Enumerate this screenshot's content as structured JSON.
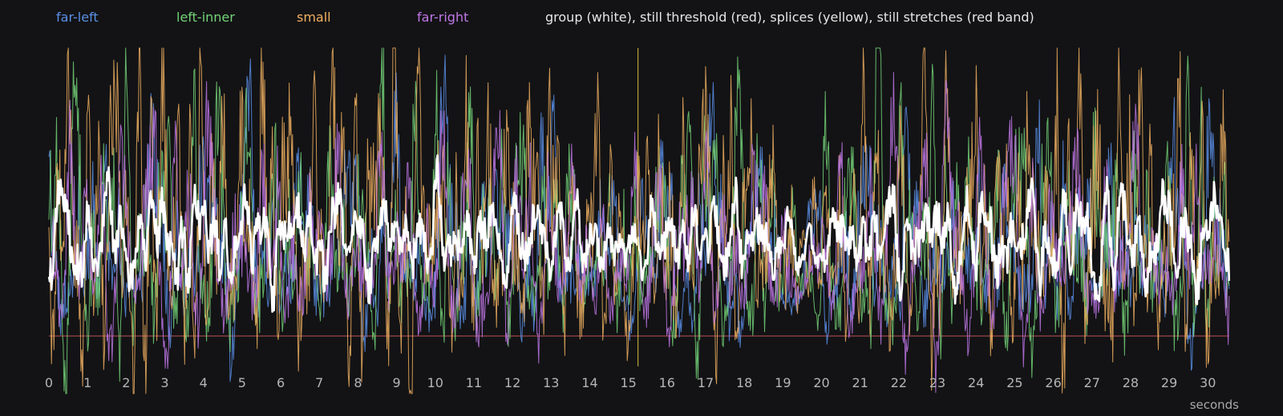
{
  "chart_data": {
    "type": "line",
    "caption": "group (white), still threshold (red), splices (yellow), still stretches (red band)",
    "xlabel": "seconds",
    "xlim": [
      0,
      30.7
    ],
    "ylim": [
      0,
      1
    ],
    "x_ticks": [
      0,
      1,
      2,
      3,
      4,
      5,
      6,
      7,
      8,
      9,
      10,
      11,
      12,
      13,
      14,
      15,
      16,
      17,
      18,
      19,
      20,
      21,
      22,
      23,
      24,
      25,
      26,
      27,
      28,
      29,
      30
    ],
    "threshold": {
      "value": 0.1,
      "color": "#e06060"
    },
    "splices": [
      {
        "x": 15.25,
        "color": "#d8c040"
      }
    ],
    "series": [
      {
        "name": "far-left",
        "color": "#5b8fe8",
        "amp": 0.33,
        "seed": 11
      },
      {
        "name": "left-inner",
        "color": "#74d478",
        "amp": 0.4,
        "seed": 23
      },
      {
        "name": "small",
        "color": "#f0b060",
        "amp": 0.55,
        "seed": 37
      },
      {
        "name": "far-right",
        "color": "#c077e8",
        "amp": 0.33,
        "seed": 53
      },
      {
        "name": "group",
        "color": "#ffffff",
        "amp": 0.22,
        "seed": 71,
        "legend": false
      }
    ]
  }
}
